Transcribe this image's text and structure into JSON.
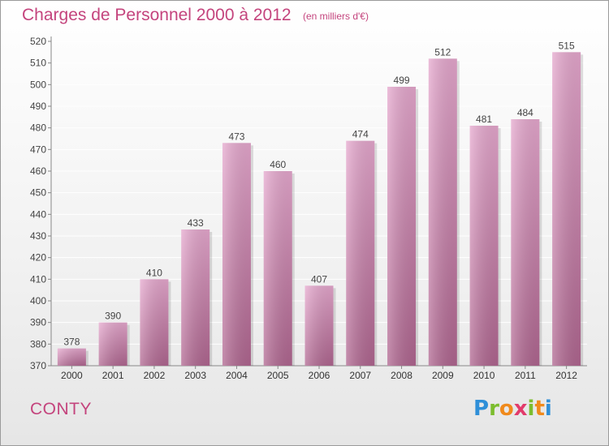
{
  "title": "Charges de Personnel 2000 à 2012",
  "subtitle": "(en milliers d'€)",
  "town": "CONTY",
  "logo": {
    "text": "Proxiti",
    "colors": [
      "#2f8fd8",
      "#7cbd2e",
      "#f08a1c",
      "#e23b6b"
    ]
  },
  "colors": {
    "bar_top": "#e6a8ce",
    "bar_bottom": "#b06690",
    "text": "#c4447d",
    "grid": "#ffffff"
  },
  "chart_data": {
    "type": "bar",
    "title": "Charges de Personnel 2000 à 2012",
    "subtitle": "(en milliers d'€)",
    "categories": [
      "2000",
      "2001",
      "2002",
      "2003",
      "2004",
      "2005",
      "2006",
      "2007",
      "2008",
      "2009",
      "2010",
      "2011",
      "2012"
    ],
    "values": [
      378,
      390,
      410,
      433,
      473,
      460,
      407,
      474,
      499,
      512,
      481,
      484,
      515
    ],
    "ylim": [
      370,
      520
    ],
    "yticks": [
      370,
      380,
      390,
      400,
      410,
      420,
      430,
      440,
      450,
      460,
      470,
      480,
      490,
      500,
      510,
      520
    ],
    "xlabel": "",
    "ylabel": "",
    "grid": true,
    "data_labels": true
  }
}
